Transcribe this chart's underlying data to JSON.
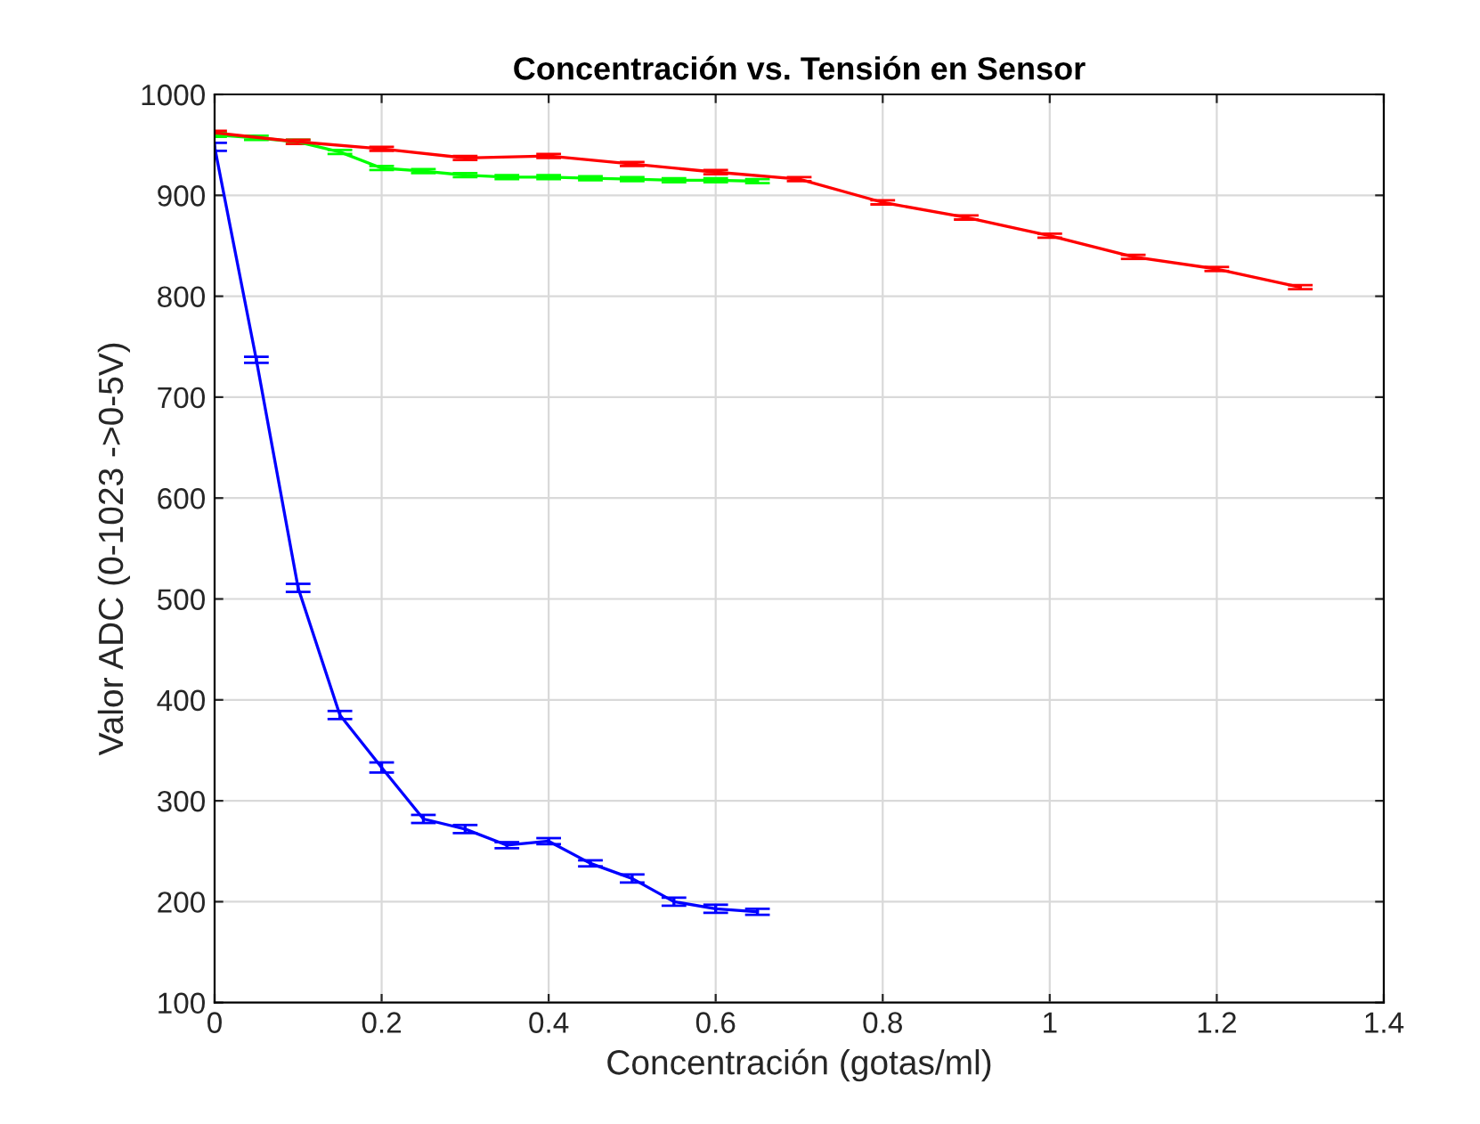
{
  "chart_data": {
    "type": "line",
    "title": "Concentración vs. Tensión en Sensor",
    "xlabel": "Concentración (gotas/ml)",
    "ylabel": "Valor ADC (0-1023 ->0-5V)",
    "xlim": [
      0,
      1.4
    ],
    "xticks": [
      0,
      0.2,
      0.4,
      0.6,
      0.8,
      1,
      1.2,
      1.4
    ],
    "ylim": [
      100,
      1000
    ],
    "yticks": [
      100,
      200,
      300,
      400,
      500,
      600,
      700,
      800,
      900,
      1000
    ],
    "grid": true,
    "series": [
      {
        "color": "#0000ff",
        "x": [
          0,
          0.05,
          0.1,
          0.15,
          0.2,
          0.25,
          0.3,
          0.35,
          0.4,
          0.45,
          0.5,
          0.55,
          0.6,
          0.65
        ],
        "values": [
          948,
          737,
          511,
          385,
          333,
          282,
          272,
          256,
          260,
          238,
          223,
          200,
          193,
          190
        ],
        "errors": [
          4,
          3,
          4,
          4,
          5,
          4,
          4,
          3,
          3,
          3,
          4,
          4,
          4,
          3
        ]
      },
      {
        "color": "#00ff00",
        "x": [
          0,
          0.05,
          0.1,
          0.15,
          0.2,
          0.25,
          0.3,
          0.35,
          0.4,
          0.45,
          0.5,
          0.55,
          0.6,
          0.65
        ],
        "values": [
          960,
          957,
          953,
          943,
          927,
          924,
          920,
          918,
          918,
          917,
          916,
          915,
          915,
          914
        ],
        "errors": [
          2,
          2,
          2,
          2,
          2,
          2,
          2,
          2,
          2,
          2,
          2,
          2,
          2,
          2
        ]
      },
      {
        "color": "#ff0000",
        "x": [
          0,
          0.1,
          0.2,
          0.3,
          0.4,
          0.5,
          0.6,
          0.7,
          0.8,
          0.9,
          1,
          1.1,
          1.2,
          1.3
        ],
        "values": [
          962,
          953,
          946,
          937,
          939,
          931,
          923,
          916,
          893,
          878,
          860,
          839,
          827,
          809
        ],
        "errors": [
          2,
          2,
          2,
          2,
          2,
          2,
          2,
          2,
          2,
          2,
          2,
          2,
          2,
          2
        ]
      }
    ]
  }
}
